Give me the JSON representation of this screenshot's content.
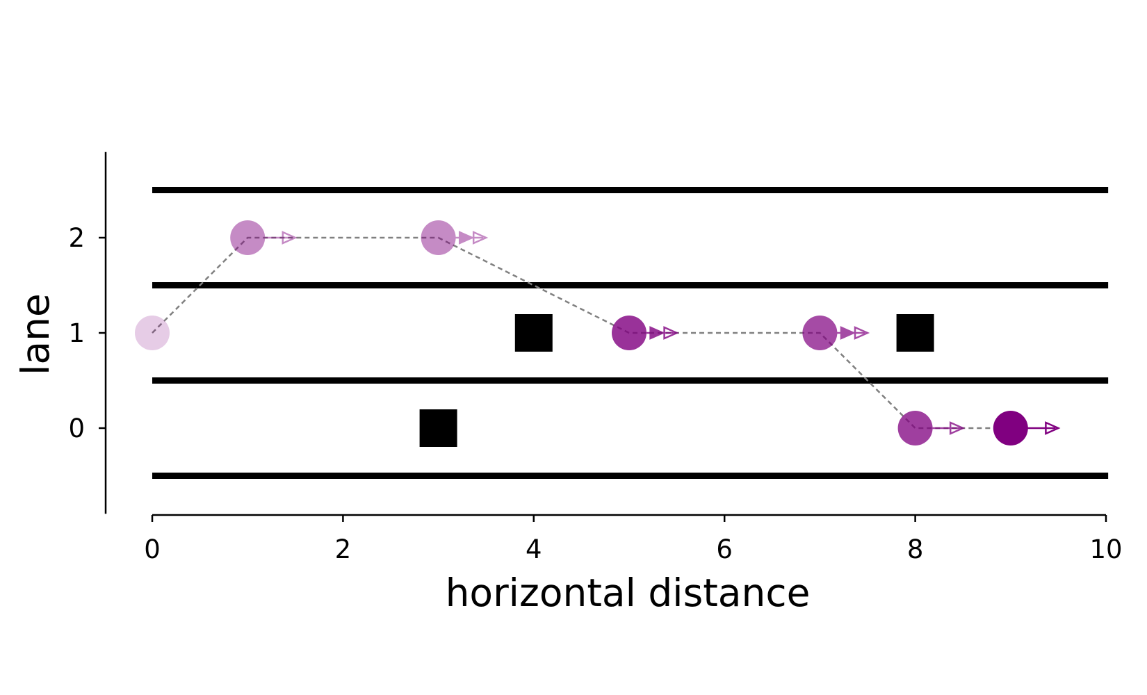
{
  "chart_data": {
    "type": "scatter",
    "title": "",
    "xlabel": "horizontal distance",
    "ylabel": "lane",
    "xlim": [
      -0.5,
      10
    ],
    "ylim": [
      -0.9,
      2.9
    ],
    "x_ticks": [
      0,
      2,
      4,
      6,
      8,
      10
    ],
    "y_ticks": [
      0,
      1,
      2
    ],
    "grid": false,
    "lane_boundaries": [
      -0.5,
      0.5,
      1.5,
      2.5
    ],
    "lane_line_x_range": [
      0,
      9.95
    ],
    "obstacles": [
      {
        "x": 3,
        "y": 0
      },
      {
        "x": 4,
        "y": 1
      },
      {
        "x": 8,
        "y": 1
      }
    ],
    "trajectory": [
      {
        "x": 0,
        "y": 1,
        "speed_arrows": 0,
        "opacity": 0.2
      },
      {
        "x": 1,
        "y": 2,
        "speed_arrows": 1,
        "opacity": 0.45
      },
      {
        "x": 3,
        "y": 2,
        "speed_arrows": 2,
        "opacity": 0.45
      },
      {
        "x": 5,
        "y": 1,
        "speed_arrows": 2,
        "opacity": 0.8
      },
      {
        "x": 7,
        "y": 1,
        "speed_arrows": 2,
        "opacity": 0.7
      },
      {
        "x": 8,
        "y": 0,
        "speed_arrows": 1,
        "opacity": 0.75
      },
      {
        "x": 9,
        "y": 0,
        "speed_arrows": 1,
        "opacity": 1.0
      }
    ],
    "colors": {
      "agent": "#800080",
      "obstacle": "#000000",
      "path": "#808080",
      "lane_line": "#000000"
    }
  }
}
